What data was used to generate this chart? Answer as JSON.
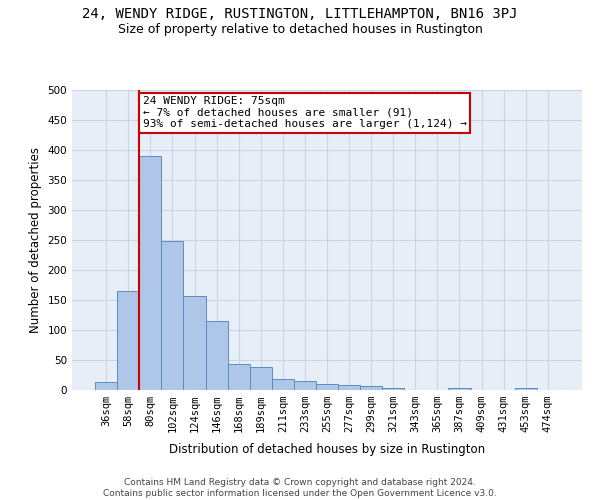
{
  "title": "24, WENDY RIDGE, RUSTINGTON, LITTLEHAMPTON, BN16 3PJ",
  "subtitle": "Size of property relative to detached houses in Rustington",
  "xlabel": "Distribution of detached houses by size in Rustington",
  "ylabel": "Number of detached properties",
  "categories": [
    "36sqm",
    "58sqm",
    "80sqm",
    "102sqm",
    "124sqm",
    "146sqm",
    "168sqm",
    "189sqm",
    "211sqm",
    "233sqm",
    "255sqm",
    "277sqm",
    "299sqm",
    "321sqm",
    "343sqm",
    "365sqm",
    "387sqm",
    "409sqm",
    "431sqm",
    "453sqm",
    "474sqm"
  ],
  "values": [
    13,
    165,
    390,
    248,
    157,
    115,
    43,
    39,
    18,
    15,
    10,
    9,
    6,
    4,
    0,
    0,
    4,
    0,
    0,
    4,
    0
  ],
  "bar_color": "#aec6e8",
  "bar_edge_color": "#5a8fc2",
  "highlight_bar_index": 2,
  "highlight_line_color": "#cc0000",
  "annotation_text": "24 WENDY RIDGE: 75sqm\n← 7% of detached houses are smaller (91)\n93% of semi-detached houses are larger (1,124) →",
  "annotation_box_color": "#ffffff",
  "annotation_box_edge_color": "#cc0000",
  "ylim": [
    0,
    500
  ],
  "yticks": [
    0,
    50,
    100,
    150,
    200,
    250,
    300,
    350,
    400,
    450,
    500
  ],
  "footer_text": "Contains HM Land Registry data © Crown copyright and database right 2024.\nContains public sector information licensed under the Open Government Licence v3.0.",
  "background_color": "#ffffff",
  "plot_bg_color": "#e8eef7",
  "grid_color": "#c8d4e8",
  "title_fontsize": 10,
  "subtitle_fontsize": 9,
  "axis_label_fontsize": 8.5,
  "tick_fontsize": 7.5,
  "annotation_fontsize": 8,
  "footer_fontsize": 6.5
}
